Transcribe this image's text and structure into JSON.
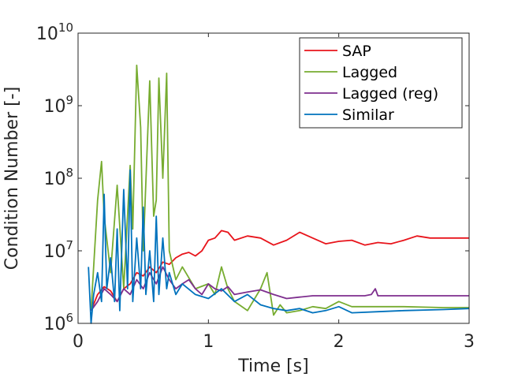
{
  "chart_data": {
    "type": "line",
    "title": "",
    "xlabel": "Time [s]",
    "ylabel": "Condition Number [-]",
    "xlim": [
      0,
      3
    ],
    "ylim": [
      1000000,
      10000000000
    ],
    "y_scale": "log",
    "x_ticks": [
      {
        "value": 0,
        "label": "0"
      },
      {
        "value": 1,
        "label": "1"
      },
      {
        "value": 2,
        "label": "2"
      },
      {
        "value": 3,
        "label": "3"
      }
    ],
    "y_ticks": [
      {
        "value": 1000000,
        "base": "10",
        "exp": "6"
      },
      {
        "value": 10000000,
        "base": "10",
        "exp": "7"
      },
      {
        "value": 100000000,
        "base": "10",
        "exp": "8"
      },
      {
        "value": 1000000000,
        "base": "10",
        "exp": "9"
      },
      {
        "value": 10000000000,
        "base": "10",
        "exp": "10"
      }
    ],
    "grid": false,
    "legend_position": "top-right",
    "series": [
      {
        "name": "SAP",
        "color": "#e8141b",
        "x": [
          0.1,
          0.15,
          0.2,
          0.25,
          0.3,
          0.35,
          0.4,
          0.45,
          0.5,
          0.55,
          0.6,
          0.65,
          0.7,
          0.75,
          0.8,
          0.85,
          0.9,
          0.95,
          1.0,
          1.05,
          1.1,
          1.15,
          1.2,
          1.3,
          1.4,
          1.5,
          1.6,
          1.7,
          1.8,
          1.9,
          2.0,
          2.1,
          2.2,
          2.3,
          2.4,
          2.5,
          2.6,
          2.7,
          2.8,
          2.9,
          3.0
        ],
        "y": [
          1500000,
          2500000,
          3200000,
          2800000,
          2000000,
          3000000,
          3500000,
          5000000,
          4500000,
          6000000,
          5000000,
          7000000,
          6500000,
          8000000,
          9000000,
          9500000,
          8500000,
          10000000,
          14000000,
          15000000,
          19000000,
          18000000,
          14000000,
          16000000,
          15000000,
          12000000,
          14000000,
          18000000,
          15000000,
          12500000,
          13500000,
          14000000,
          12000000,
          13000000,
          12500000,
          14000000,
          16000000,
          15000000,
          15000000,
          15000000,
          15000000
        ]
      },
      {
        "name": "Lagged",
        "color": "#77ac30",
        "x": [
          0.1,
          0.15,
          0.18,
          0.2,
          0.25,
          0.3,
          0.35,
          0.4,
          0.42,
          0.45,
          0.48,
          0.5,
          0.55,
          0.58,
          0.6,
          0.62,
          0.65,
          0.68,
          0.7,
          0.75,
          0.8,
          0.9,
          1.0,
          1.05,
          1.1,
          1.15,
          1.2,
          1.3,
          1.4,
          1.45,
          1.5,
          1.55,
          1.6,
          1.7,
          1.8,
          1.9,
          2.0,
          2.1,
          2.3,
          2.5,
          2.8,
          3.0
        ],
        "y": [
          1500000,
          50000000,
          170000000,
          30000000,
          5000000,
          80000000,
          3000000,
          150000000,
          20000000,
          3600000000,
          500000000,
          10000000,
          2200000000,
          30000000,
          50000000,
          2400000000,
          100000000,
          2800000000,
          10000000,
          4000000,
          6000000,
          3000000,
          3500000,
          2500000,
          6000000,
          3000000,
          2000000,
          1500000,
          3000000,
          5000000,
          1300000,
          1800000,
          1400000,
          1500000,
          1700000,
          1600000,
          2000000,
          1700000,
          1700000,
          1700000,
          1650000,
          1650000
        ]
      },
      {
        "name": "Lagged (reg)",
        "color": "#7e2f8e",
        "x": [
          0.1,
          0.15,
          0.2,
          0.25,
          0.3,
          0.35,
          0.4,
          0.45,
          0.5,
          0.55,
          0.6,
          0.65,
          0.7,
          0.75,
          0.8,
          0.85,
          0.9,
          0.95,
          1.0,
          1.05,
          1.1,
          1.15,
          1.2,
          1.3,
          1.4,
          1.5,
          1.6,
          1.7,
          1.8,
          2.0,
          2.2,
          2.25,
          2.28,
          2.3,
          2.4,
          2.6,
          3.0
        ],
        "y": [
          1500000,
          2000000,
          3000000,
          2500000,
          2000000,
          3000000,
          2500000,
          4000000,
          3000000,
          5000000,
          3500000,
          6000000,
          4000000,
          3000000,
          3500000,
          4000000,
          3000000,
          2500000,
          3500000,
          3000000,
          2800000,
          3200000,
          2500000,
          2700000,
          2900000,
          2500000,
          2200000,
          2300000,
          2400000,
          2400000,
          2400000,
          2500000,
          3000000,
          2400000,
          2400000,
          2400000,
          2400000
        ]
      },
      {
        "name": "Similar",
        "color": "#0072bd",
        "x": [
          0.08,
          0.1,
          0.12,
          0.15,
          0.18,
          0.2,
          0.22,
          0.25,
          0.28,
          0.3,
          0.32,
          0.35,
          0.38,
          0.4,
          0.42,
          0.45,
          0.48,
          0.5,
          0.52,
          0.55,
          0.58,
          0.6,
          0.62,
          0.65,
          0.68,
          0.7,
          0.75,
          0.8,
          0.9,
          1.0,
          1.1,
          1.2,
          1.3,
          1.4,
          1.5,
          1.6,
          1.7,
          1.8,
          1.9,
          2.0,
          2.1,
          2.3,
          2.5,
          2.8,
          3.0
        ],
        "y": [
          6000000,
          1000000,
          2500000,
          5000000,
          2000000,
          60000000,
          3000000,
          8000000,
          2000000,
          20000000,
          1500000,
          70000000,
          3000000,
          130000000,
          2000000,
          15000000,
          3000000,
          40000000,
          2500000,
          10000000,
          2000000,
          30000000,
          2500000,
          15000000,
          3000000,
          5000000,
          2500000,
          3500000,
          2500000,
          2200000,
          3000000,
          2000000,
          2500000,
          1800000,
          1600000,
          1500000,
          1600000,
          1400000,
          1500000,
          1700000,
          1400000,
          1450000,
          1500000,
          1550000,
          1600000
        ]
      }
    ]
  }
}
